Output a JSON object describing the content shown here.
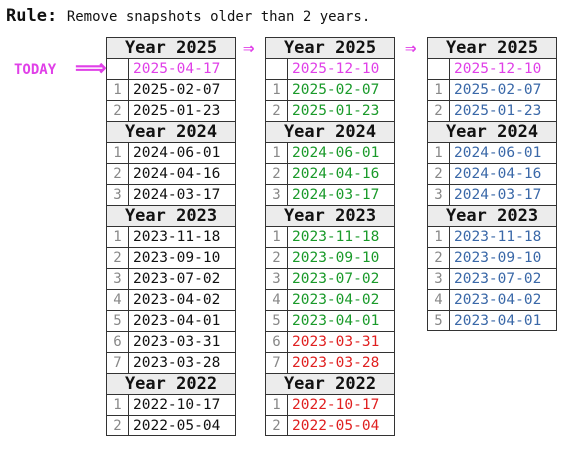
{
  "rule": {
    "label": "Rule:",
    "text": "Remove snapshots older than 2 years."
  },
  "today_label": "TODAY",
  "arrow_glyph": "⇒",
  "today_arrow_glyph": "⟹",
  "colors": {
    "accent": "#e040e8",
    "keep": "#1a9a2a",
    "remove": "#e02020",
    "result": "#3a68a8",
    "default": "#111111"
  },
  "columns": [
    {
      "groups": [
        {
          "year": "Year 2025",
          "rows": [
            {
              "idx": "",
              "date": "2025-04-17",
              "status": "today"
            },
            {
              "idx": "1",
              "date": "2025-02-07",
              "status": "default"
            },
            {
              "idx": "2",
              "date": "2025-01-23",
              "status": "default"
            }
          ]
        },
        {
          "year": "Year 2024",
          "rows": [
            {
              "idx": "1",
              "date": "2024-06-01",
              "status": "default"
            },
            {
              "idx": "2",
              "date": "2024-04-16",
              "status": "default"
            },
            {
              "idx": "3",
              "date": "2024-03-17",
              "status": "default"
            }
          ]
        },
        {
          "year": "Year 2023",
          "rows": [
            {
              "idx": "1",
              "date": "2023-11-18",
              "status": "default"
            },
            {
              "idx": "2",
              "date": "2023-09-10",
              "status": "default"
            },
            {
              "idx": "3",
              "date": "2023-07-02",
              "status": "default"
            },
            {
              "idx": "4",
              "date": "2023-04-02",
              "status": "default"
            },
            {
              "idx": "5",
              "date": "2023-04-01",
              "status": "default"
            },
            {
              "idx": "6",
              "date": "2023-03-31",
              "status": "default"
            },
            {
              "idx": "7",
              "date": "2023-03-28",
              "status": "default"
            }
          ]
        },
        {
          "year": "Year 2022",
          "rows": [
            {
              "idx": "1",
              "date": "2022-10-17",
              "status": "default"
            },
            {
              "idx": "2",
              "date": "2022-05-04",
              "status": "default"
            }
          ]
        }
      ]
    },
    {
      "groups": [
        {
          "year": "Year 2025",
          "rows": [
            {
              "idx": "",
              "date": "2025-12-10",
              "status": "today"
            },
            {
              "idx": "1",
              "date": "2025-02-07",
              "status": "keep"
            },
            {
              "idx": "2",
              "date": "2025-01-23",
              "status": "keep"
            }
          ]
        },
        {
          "year": "Year 2024",
          "rows": [
            {
              "idx": "1",
              "date": "2024-06-01",
              "status": "keep"
            },
            {
              "idx": "2",
              "date": "2024-04-16",
              "status": "keep"
            },
            {
              "idx": "3",
              "date": "2024-03-17",
              "status": "keep"
            }
          ]
        },
        {
          "year": "Year 2023",
          "rows": [
            {
              "idx": "1",
              "date": "2023-11-18",
              "status": "keep"
            },
            {
              "idx": "2",
              "date": "2023-09-10",
              "status": "keep"
            },
            {
              "idx": "3",
              "date": "2023-07-02",
              "status": "keep"
            },
            {
              "idx": "4",
              "date": "2023-04-02",
              "status": "keep"
            },
            {
              "idx": "5",
              "date": "2023-04-01",
              "status": "keep"
            },
            {
              "idx": "6",
              "date": "2023-03-31",
              "status": "remove"
            },
            {
              "idx": "7",
              "date": "2023-03-28",
              "status": "remove"
            }
          ]
        },
        {
          "year": "Year 2022",
          "rows": [
            {
              "idx": "1",
              "date": "2022-10-17",
              "status": "remove"
            },
            {
              "idx": "2",
              "date": "2022-05-04",
              "status": "remove"
            }
          ]
        }
      ]
    },
    {
      "groups": [
        {
          "year": "Year 2025",
          "rows": [
            {
              "idx": "",
              "date": "2025-12-10",
              "status": "today"
            },
            {
              "idx": "1",
              "date": "2025-02-07",
              "status": "result"
            },
            {
              "idx": "2",
              "date": "2025-01-23",
              "status": "result"
            }
          ]
        },
        {
          "year": "Year 2024",
          "rows": [
            {
              "idx": "1",
              "date": "2024-06-01",
              "status": "result"
            },
            {
              "idx": "2",
              "date": "2024-04-16",
              "status": "result"
            },
            {
              "idx": "3",
              "date": "2024-03-17",
              "status": "result"
            }
          ]
        },
        {
          "year": "Year 2023",
          "rows": [
            {
              "idx": "1",
              "date": "2023-11-18",
              "status": "result"
            },
            {
              "idx": "2",
              "date": "2023-09-10",
              "status": "result"
            },
            {
              "idx": "3",
              "date": "2023-07-02",
              "status": "result"
            },
            {
              "idx": "4",
              "date": "2023-04-02",
              "status": "result"
            },
            {
              "idx": "5",
              "date": "2023-04-01",
              "status": "result"
            }
          ]
        }
      ]
    }
  ]
}
